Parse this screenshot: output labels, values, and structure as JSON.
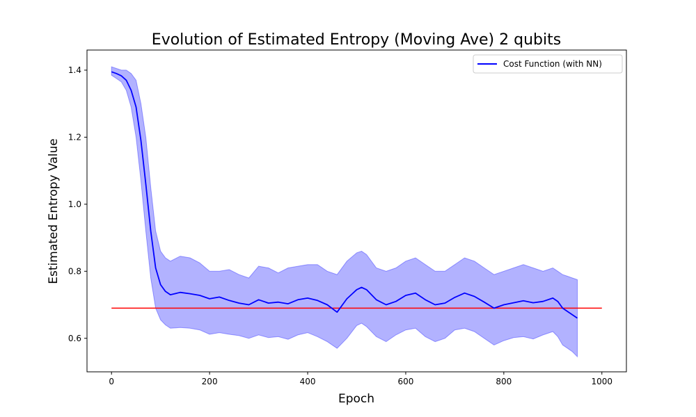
{
  "chart_data": {
    "type": "line",
    "title": "Evolution of Estimated Entropy (Moving Ave) 2 qubits",
    "xlabel": "Epoch",
    "ylabel": "Estimated Entropy Value",
    "xlim": [
      -50,
      1050
    ],
    "ylim": [
      0.5,
      1.46
    ],
    "xticks": [
      0,
      200,
      400,
      600,
      800,
      1000
    ],
    "yticks": [
      0.6,
      0.8,
      1.0,
      1.2,
      1.4
    ],
    "grid": false,
    "legend_position": "top-right",
    "colors": {
      "mean_line": "#0000ff",
      "band_fill": "#0000ff",
      "reference_line": "#ff0000"
    },
    "series": [
      {
        "name": "Cost Function (with NN)",
        "kind": "line",
        "x": [
          0,
          10,
          20,
          30,
          40,
          50,
          60,
          70,
          80,
          90,
          100,
          110,
          120,
          140,
          160,
          180,
          200,
          220,
          240,
          260,
          280,
          300,
          320,
          340,
          360,
          380,
          400,
          420,
          440,
          460,
          480,
          500,
          510,
          520,
          540,
          560,
          580,
          600,
          620,
          640,
          660,
          680,
          700,
          720,
          740,
          760,
          780,
          800,
          820,
          840,
          860,
          880,
          900,
          910,
          920,
          930,
          940,
          950
        ],
        "y": [
          1.395,
          1.39,
          1.383,
          1.37,
          1.34,
          1.29,
          1.19,
          1.06,
          0.92,
          0.81,
          0.76,
          0.74,
          0.73,
          0.737,
          0.733,
          0.728,
          0.718,
          0.723,
          0.713,
          0.705,
          0.7,
          0.715,
          0.705,
          0.708,
          0.703,
          0.715,
          0.72,
          0.713,
          0.7,
          0.678,
          0.718,
          0.745,
          0.752,
          0.745,
          0.715,
          0.7,
          0.71,
          0.728,
          0.735,
          0.715,
          0.7,
          0.705,
          0.722,
          0.735,
          0.725,
          0.708,
          0.69,
          0.7,
          0.706,
          0.712,
          0.706,
          0.71,
          0.72,
          0.71,
          0.69,
          0.68,
          0.67,
          0.66
        ]
      },
      {
        "name": "",
        "kind": "band",
        "x": [
          0,
          10,
          20,
          30,
          40,
          50,
          60,
          70,
          80,
          90,
          100,
          110,
          120,
          140,
          160,
          180,
          200,
          220,
          240,
          260,
          280,
          300,
          320,
          340,
          360,
          380,
          400,
          420,
          440,
          460,
          480,
          500,
          510,
          520,
          540,
          560,
          580,
          600,
          620,
          640,
          660,
          680,
          700,
          720,
          740,
          760,
          780,
          800,
          820,
          840,
          860,
          880,
          900,
          910,
          920,
          930,
          940,
          950
        ],
        "upper": [
          1.41,
          1.405,
          1.4,
          1.4,
          1.39,
          1.37,
          1.3,
          1.2,
          1.05,
          0.92,
          0.86,
          0.84,
          0.83,
          0.845,
          0.84,
          0.825,
          0.8,
          0.8,
          0.805,
          0.79,
          0.78,
          0.815,
          0.81,
          0.795,
          0.81,
          0.815,
          0.82,
          0.82,
          0.8,
          0.79,
          0.83,
          0.855,
          0.86,
          0.85,
          0.81,
          0.8,
          0.81,
          0.83,
          0.84,
          0.82,
          0.8,
          0.8,
          0.82,
          0.84,
          0.83,
          0.81,
          0.79,
          0.8,
          0.81,
          0.82,
          0.81,
          0.8,
          0.81,
          0.8,
          0.79,
          0.785,
          0.78,
          0.775
        ],
        "lower": [
          1.385,
          1.375,
          1.365,
          1.34,
          1.29,
          1.2,
          1.07,
          0.92,
          0.78,
          0.69,
          0.655,
          0.64,
          0.63,
          0.632,
          0.63,
          0.625,
          0.612,
          0.617,
          0.612,
          0.608,
          0.6,
          0.61,
          0.602,
          0.605,
          0.597,
          0.61,
          0.617,
          0.605,
          0.59,
          0.57,
          0.6,
          0.638,
          0.645,
          0.635,
          0.605,
          0.59,
          0.61,
          0.625,
          0.63,
          0.605,
          0.59,
          0.6,
          0.625,
          0.63,
          0.62,
          0.6,
          0.58,
          0.593,
          0.602,
          0.605,
          0.598,
          0.61,
          0.62,
          0.605,
          0.58,
          0.57,
          0.56,
          0.545
        ]
      },
      {
        "name": "",
        "kind": "reference",
        "x": [
          0,
          1000
        ],
        "y": [
          0.69,
          0.69
        ]
      }
    ]
  }
}
